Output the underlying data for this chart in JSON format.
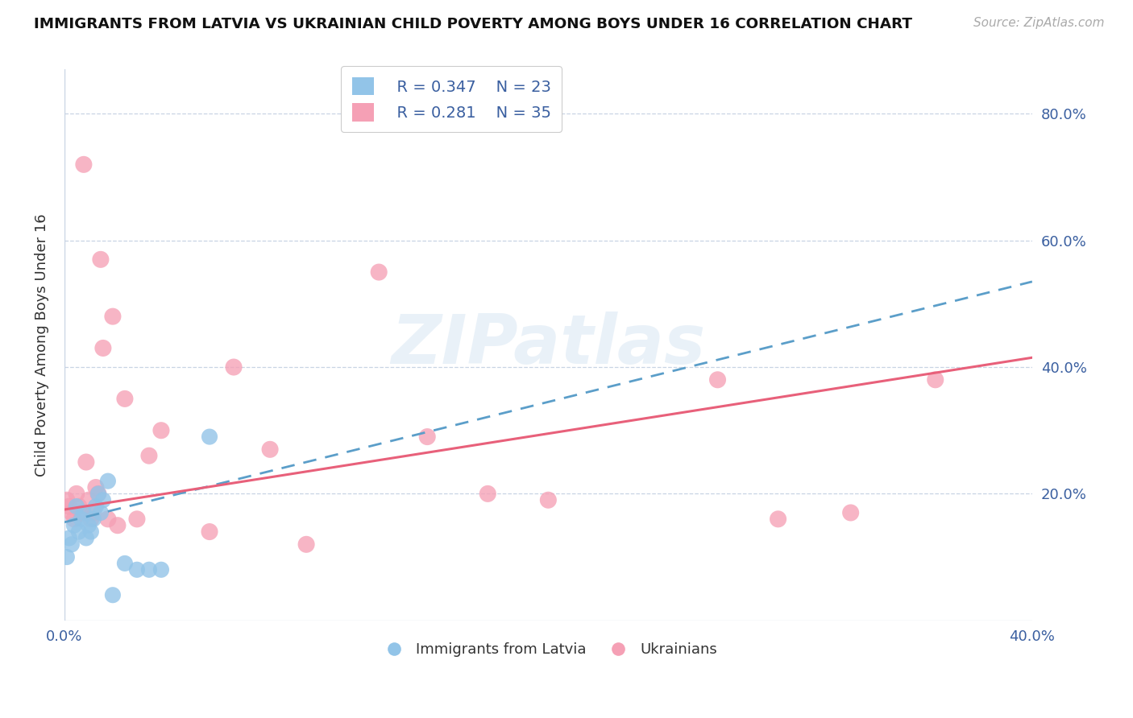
{
  "title": "IMMIGRANTS FROM LATVIA VS UKRAINIAN CHILD POVERTY AMONG BOYS UNDER 16 CORRELATION CHART",
  "source": "Source: ZipAtlas.com",
  "ylabel": "Child Poverty Among Boys Under 16",
  "xlim": [
    0.0,
    0.4
  ],
  "ylim": [
    0.0,
    0.87
  ],
  "ytick_positions": [
    0.0,
    0.2,
    0.4,
    0.6,
    0.8
  ],
  "ytick_labels_right": [
    "",
    "20.0%",
    "40.0%",
    "60.0%",
    "80.0%"
  ],
  "legend_r1": "R = 0.347",
  "legend_n1": "N = 23",
  "legend_r2": "R = 0.281",
  "legend_n2": "N = 35",
  "color_blue": "#92c4e8",
  "color_pink": "#f5a0b5",
  "line_blue": "#5b9ec9",
  "line_pink": "#e8607a",
  "watermark": "ZIPatlas",
  "blue_scatter_x": [
    0.001,
    0.002,
    0.003,
    0.004,
    0.005,
    0.006,
    0.007,
    0.008,
    0.009,
    0.01,
    0.011,
    0.012,
    0.013,
    0.014,
    0.015,
    0.016,
    0.018,
    0.02,
    0.025,
    0.03,
    0.035,
    0.04,
    0.06
  ],
  "blue_scatter_y": [
    0.1,
    0.13,
    0.12,
    0.15,
    0.18,
    0.14,
    0.16,
    0.17,
    0.13,
    0.15,
    0.14,
    0.16,
    0.18,
    0.2,
    0.17,
    0.19,
    0.22,
    0.04,
    0.09,
    0.08,
    0.08,
    0.08,
    0.29
  ],
  "pink_scatter_x": [
    0.001,
    0.002,
    0.003,
    0.004,
    0.005,
    0.006,
    0.007,
    0.008,
    0.009,
    0.01,
    0.011,
    0.012,
    0.013,
    0.014,
    0.015,
    0.016,
    0.018,
    0.02,
    0.022,
    0.025,
    0.03,
    0.035,
    0.04,
    0.06,
    0.07,
    0.085,
    0.1,
    0.13,
    0.15,
    0.175,
    0.2,
    0.27,
    0.295,
    0.325,
    0.36
  ],
  "pink_scatter_y": [
    0.19,
    0.18,
    0.17,
    0.16,
    0.2,
    0.18,
    0.17,
    0.72,
    0.25,
    0.19,
    0.16,
    0.17,
    0.21,
    0.2,
    0.57,
    0.43,
    0.16,
    0.48,
    0.15,
    0.35,
    0.16,
    0.26,
    0.3,
    0.14,
    0.4,
    0.27,
    0.12,
    0.55,
    0.29,
    0.2,
    0.19,
    0.38,
    0.16,
    0.17,
    0.38
  ]
}
